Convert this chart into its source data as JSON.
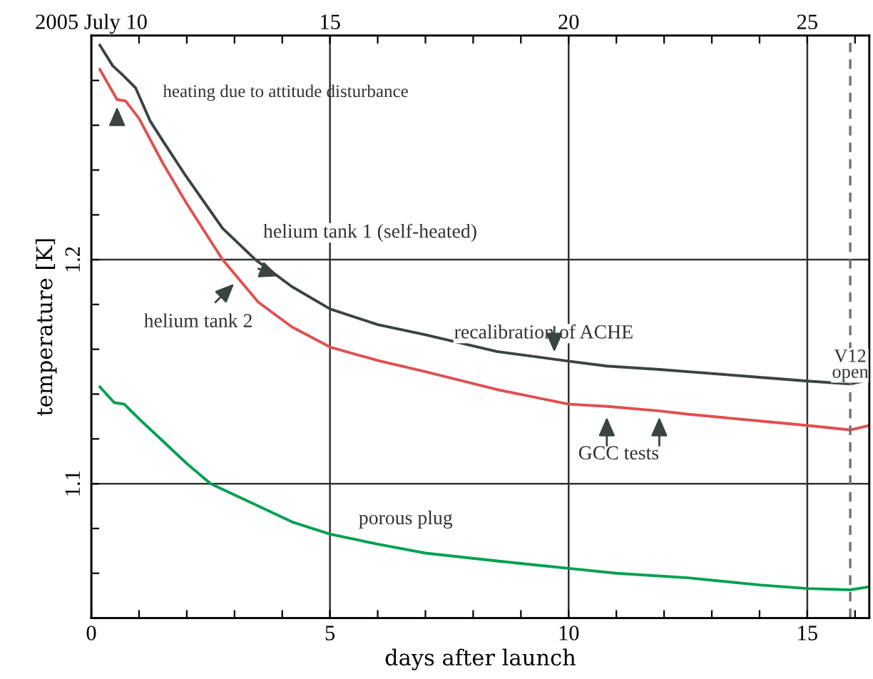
{
  "chart_data": {
    "type": "line",
    "xlabel": "days after launch",
    "ylabel": "temperature [K]",
    "xlim": [
      0,
      16.3
    ],
    "ylim": [
      1.04,
      1.3
    ],
    "xticks": [
      0,
      {
        "value": 1,
        "label": null
      },
      {
        "value": 2,
        "label": null
      },
      {
        "value": 3,
        "label": null
      },
      {
        "value": 4,
        "label": null
      },
      5,
      {
        "value": 6,
        "label": null
      },
      {
        "value": 7,
        "label": null
      },
      {
        "value": 8,
        "label": null
      },
      {
        "value": 9,
        "label": null
      },
      10,
      {
        "value": 11,
        "label": null
      },
      {
        "value": 12,
        "label": null
      },
      {
        "value": 13,
        "label": null
      },
      {
        "value": 14,
        "label": null
      },
      15,
      {
        "value": 16,
        "label": null
      }
    ],
    "x2lim": [
      10,
      26.3
    ],
    "x2ticks": [
      {
        "value": 10,
        "label": "2005 July 10"
      },
      {
        "value": 11,
        "label": null
      },
      {
        "value": 12,
        "label": null
      },
      {
        "value": 13,
        "label": null
      },
      {
        "value": 14,
        "label": null
      },
      15,
      {
        "value": 16,
        "label": null
      },
      {
        "value": 17,
        "label": null
      },
      {
        "value": 18,
        "label": null
      },
      {
        "value": 19,
        "label": null
      },
      20,
      {
        "value": 21,
        "label": null
      },
      {
        "value": 22,
        "label": null
      },
      {
        "value": 23,
        "label": null
      },
      {
        "value": 24,
        "label": null
      },
      25,
      {
        "value": 26,
        "label": null
      }
    ],
    "yticks": [
      {
        "value": 1.06,
        "label": null
      },
      {
        "value": 1.08,
        "label": null
      },
      1.1,
      {
        "value": 1.12,
        "label": null
      },
      {
        "value": 1.14,
        "label": null
      },
      {
        "value": 1.16,
        "label": null
      },
      {
        "value": 1.18,
        "label": null
      },
      1.2,
      {
        "value": 1.22,
        "label": null
      },
      {
        "value": 1.24,
        "label": null
      },
      {
        "value": 1.26,
        "label": null
      },
      {
        "value": 1.28,
        "label": null
      }
    ],
    "grid": "major",
    "series": [
      {
        "color": "#3a4442",
        "x": [
          0.18,
          0.45,
          0.63,
          0.93,
          1.23,
          1.5,
          1.97,
          2.75,
          3.44,
          4.2,
          5,
          6,
          7,
          8.5,
          10,
          10.8,
          11.9,
          12.5,
          14,
          15,
          15.9,
          16.3
        ],
        "values": [
          1.2957,
          1.2865,
          1.283,
          1.2766,
          1.262,
          1.253,
          1.2377,
          1.214,
          1.2,
          1.188,
          1.178,
          1.171,
          1.1665,
          1.159,
          1.1547,
          1.1525,
          1.151,
          1.15,
          1.1475,
          1.1458,
          1.1445,
          1.1464
        ]
      },
      {
        "color": "#e05050",
        "x": [
          0.18,
          0.54,
          0.72,
          1,
          1.5,
          2,
          2.75,
          3.5,
          4.2,
          5,
          6,
          7,
          8.5,
          10,
          10.8,
          11.9,
          12.5,
          14,
          15,
          15.9,
          16.3
        ],
        "values": [
          1.2849,
          1.2715,
          1.2708,
          1.263,
          1.243,
          1.225,
          1.2,
          1.181,
          1.17,
          1.161,
          1.155,
          1.15,
          1.142,
          1.1355,
          1.1345,
          1.1325,
          1.131,
          1.128,
          1.126,
          1.124,
          1.126
        ]
      },
      {
        "color": "#00a050",
        "x": [
          0.18,
          0.48,
          0.69,
          1,
          1.5,
          2,
          2.5,
          3.5,
          4.2,
          5,
          6,
          7,
          8.5,
          10,
          11,
          12.5,
          14,
          15,
          15.9,
          16.3
        ],
        "values": [
          1.1432,
          1.1362,
          1.1355,
          1.129,
          1.119,
          1.109,
          1.1,
          1.09,
          1.083,
          1.0775,
          1.073,
          1.069,
          1.0655,
          1.0622,
          1.06,
          1.058,
          1.0548,
          1.0532,
          1.0526,
          1.054
        ]
      }
    ],
    "ref_lines": [
      {
        "axis": "x",
        "value": 15.9,
        "label": "V12 open",
        "color": "#707070",
        "line_style": "dashed"
      }
    ],
    "annotations": [
      {
        "text": "heating due to attitude disturbance",
        "x": 0.54,
        "y": 1.2715
      },
      {
        "text": "helium tank 1 (self-heated)",
        "x": 4.0,
        "y": 1.1905
      },
      {
        "text": "helium tank 2",
        "x": 3.05,
        "y": 1.192
      },
      {
        "text": "recalibration of ACHE",
        "x": 9.7,
        "y": 1.1555
      },
      {
        "text": "GCC tests",
        "x": 11.35,
        "y": 1.133
      },
      {
        "text": "porous plug"
      }
    ]
  }
}
